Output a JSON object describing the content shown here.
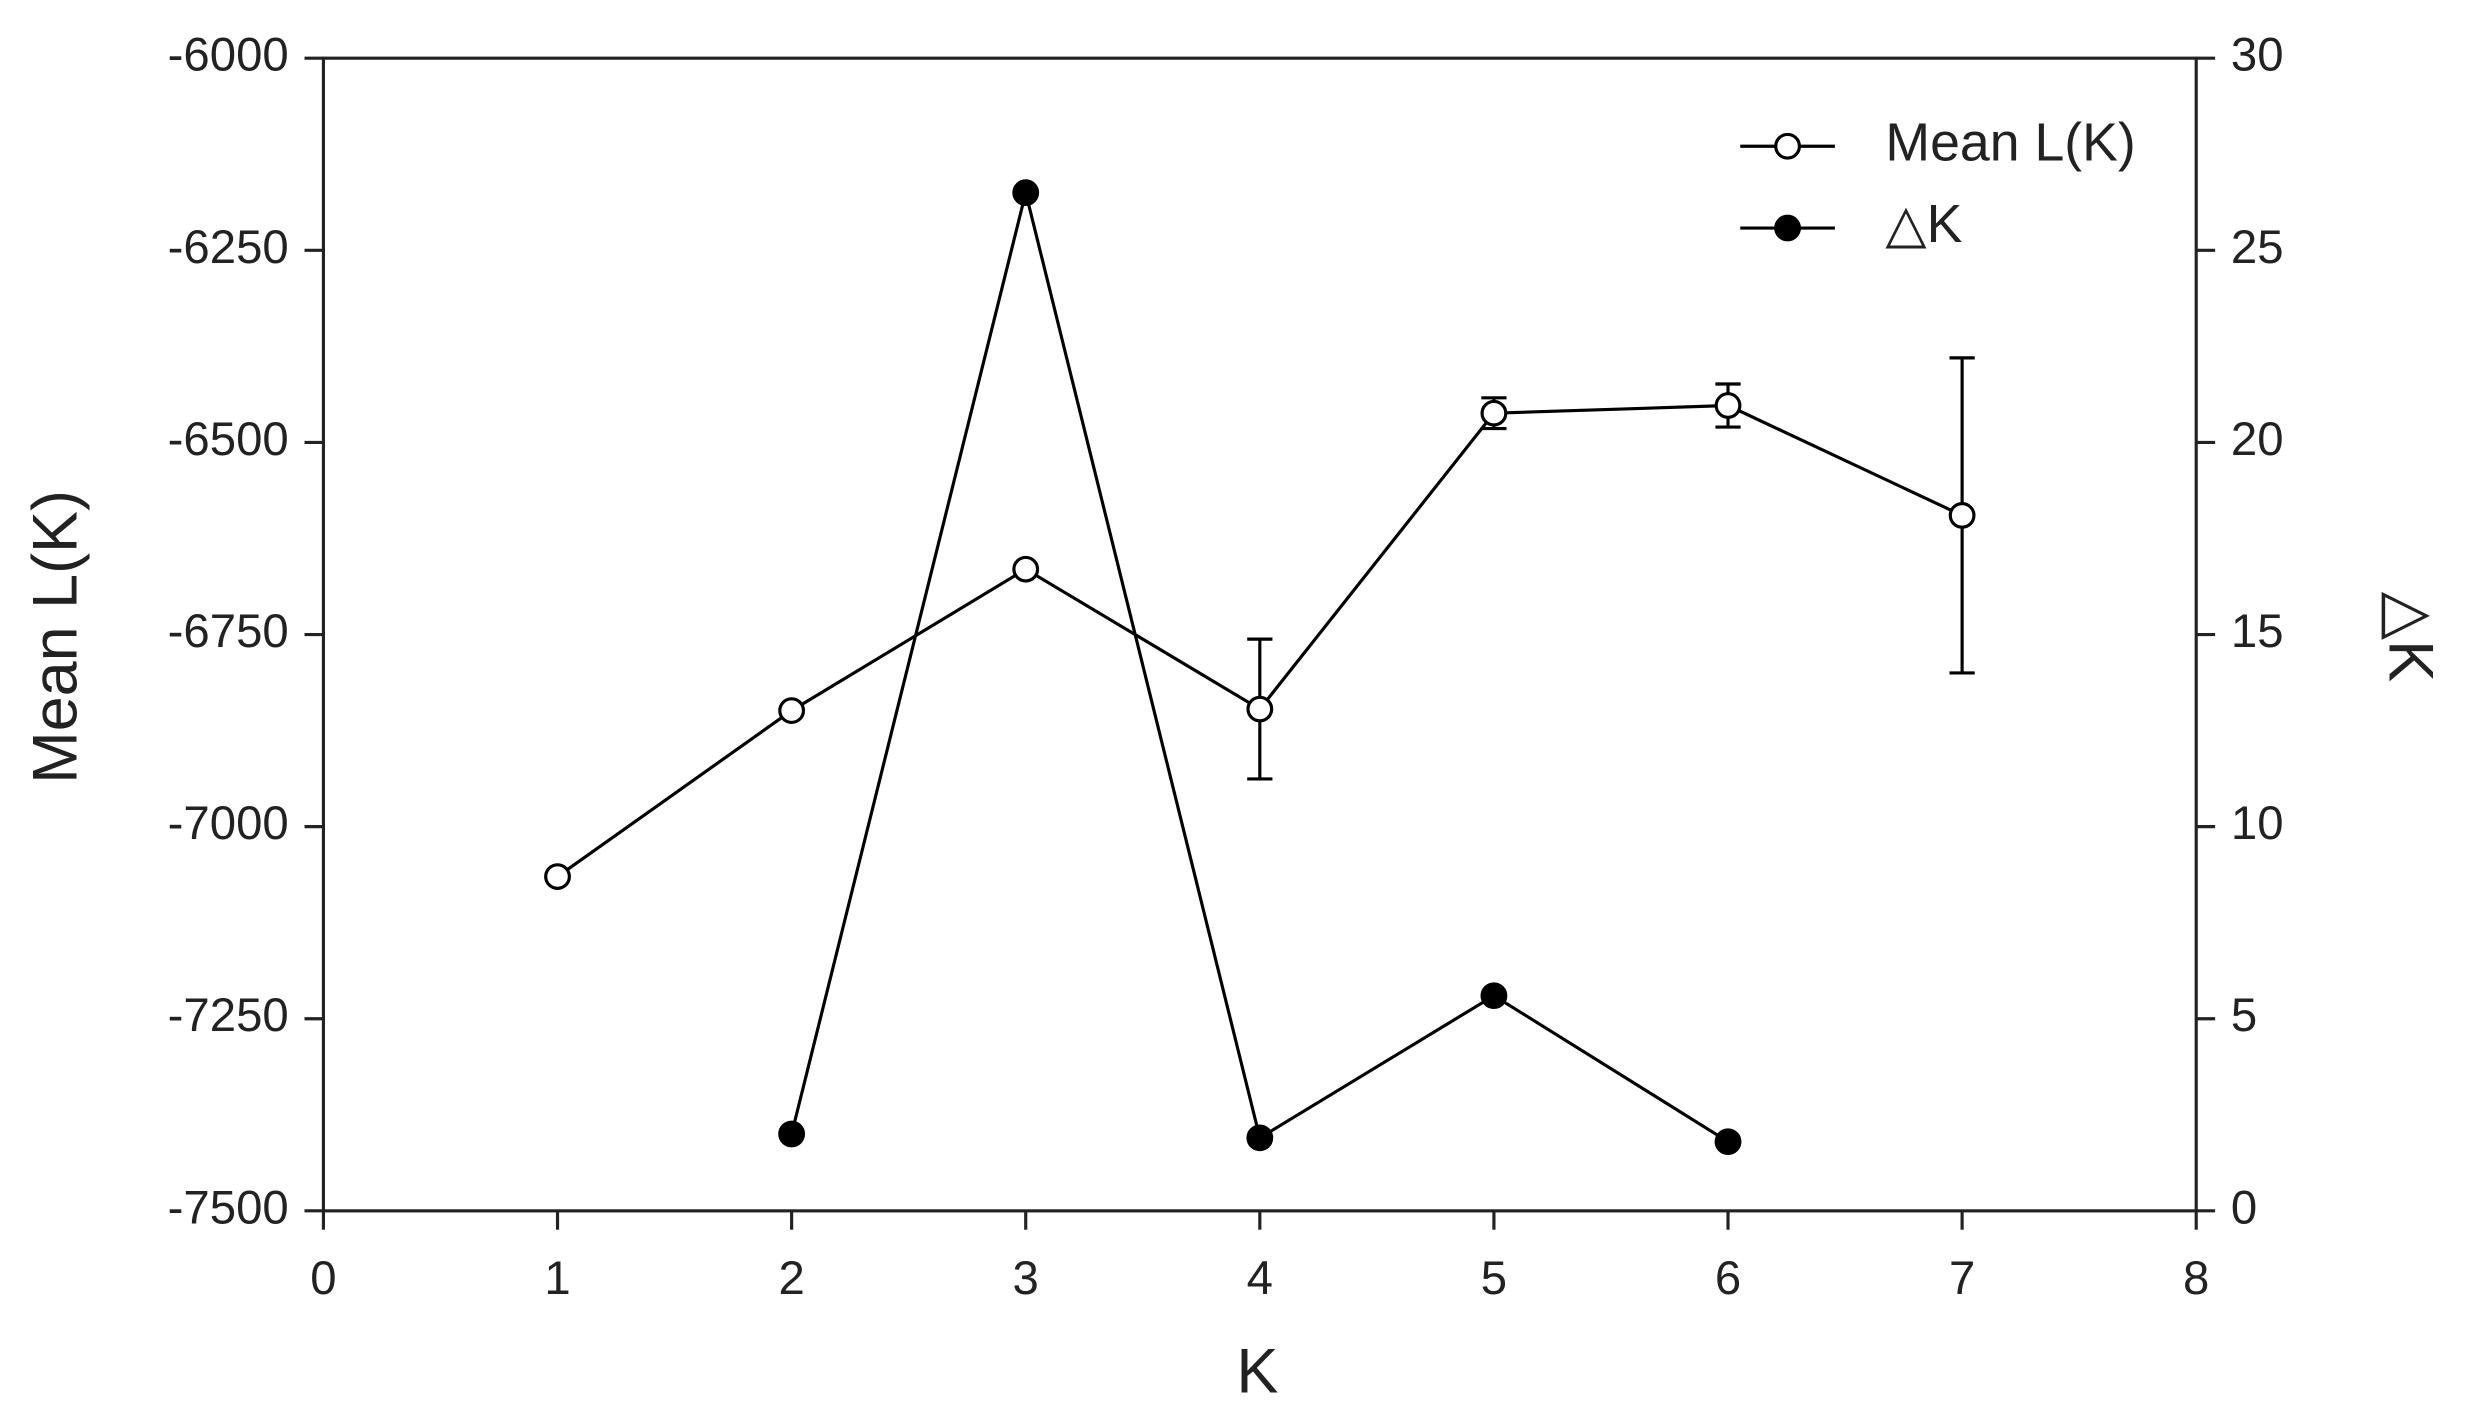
{
  "chart_data": {
    "type": "line",
    "x_label": "K",
    "y_label": "Mean L(K)",
    "y2_label": "△K",
    "x": [
      1,
      2,
      3,
      4,
      5,
      6,
      7
    ],
    "series": [
      {
        "name": "Mean L(K)",
        "color": "#000000",
        "marker_fill": "#ffffff",
        "values": [
          -7065,
          -6849,
          -6665,
          -6847,
          -6462,
          -6452,
          -6595
        ],
        "errors": [
          null,
          null,
          null,
          91,
          20,
          28,
          205
        ]
      },
      {
        "name": "△K",
        "color": "#000000",
        "marker_fill": "#000000",
        "axis": "y2",
        "values": [
          null,
          2.0,
          26.5,
          1.9,
          5.6,
          1.8,
          null
        ]
      }
    ],
    "xlim": [
      0,
      8
    ],
    "xticks": [
      0,
      1,
      2,
      3,
      4,
      5,
      6,
      7,
      8
    ],
    "ylim": [
      -7500,
      -6000
    ],
    "yticks": [
      -7500,
      -7250,
      -7000,
      -6750,
      -6500,
      -6250,
      -6000
    ],
    "y2lim": [
      0,
      30
    ],
    "y2ticks": [
      0,
      5,
      10,
      15,
      20,
      25,
      30
    ],
    "grid": false,
    "legend": "upper right"
  }
}
